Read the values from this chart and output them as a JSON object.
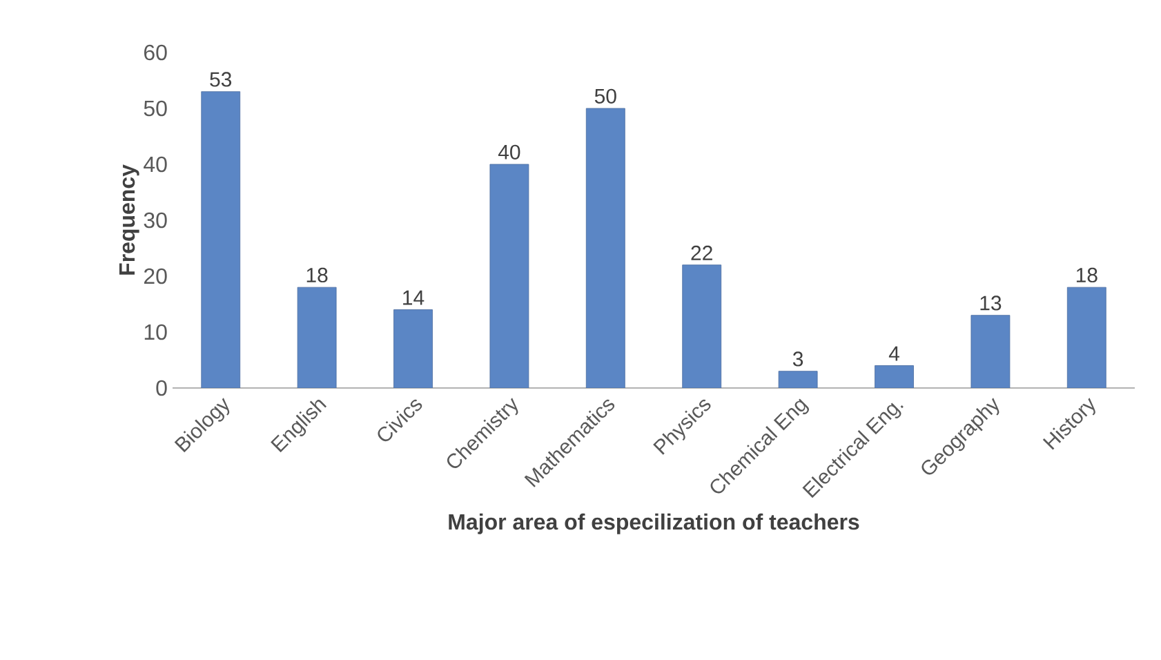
{
  "chart_data": {
    "type": "bar",
    "xlabel": "Major area of especilization of teachers",
    "ylabel": "Frequency",
    "categories": [
      "Biology",
      "English",
      "Civics",
      "Chemistry",
      "Mathematics",
      "Physics",
      "Chemical Eng",
      "Electrical Eng.",
      "Geography",
      "History"
    ],
    "values": [
      53,
      18,
      14,
      40,
      50,
      22,
      3,
      4,
      13,
      18
    ],
    "color": "#5b86c5",
    "ylim": [
      0,
      60
    ],
    "yticks": [
      0,
      10,
      20,
      30,
      40,
      50,
      60
    ],
    "data_labels": true,
    "grid": false
  }
}
